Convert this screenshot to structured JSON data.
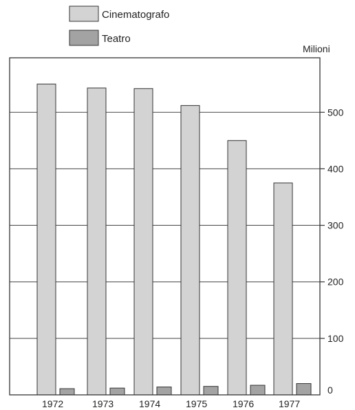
{
  "chart_data": {
    "type": "bar",
    "categories": [
      "1972",
      "1973",
      "1974",
      "1975",
      "1976",
      "1977"
    ],
    "series": [
      {
        "name": "Cinematografo",
        "color": "#d3d3d3",
        "values": [
          550,
          543,
          542,
          512,
          450,
          375
        ]
      },
      {
        "name": "Teatro",
        "color": "#a3a3a3",
        "values": [
          11,
          12,
          14,
          15,
          17,
          20
        ]
      }
    ],
    "ylabel": "Milioni",
    "yticks": [
      0,
      100,
      200,
      300,
      400,
      500
    ],
    "ylim": [
      0,
      600
    ],
    "grid": true,
    "legend_position": "top"
  }
}
